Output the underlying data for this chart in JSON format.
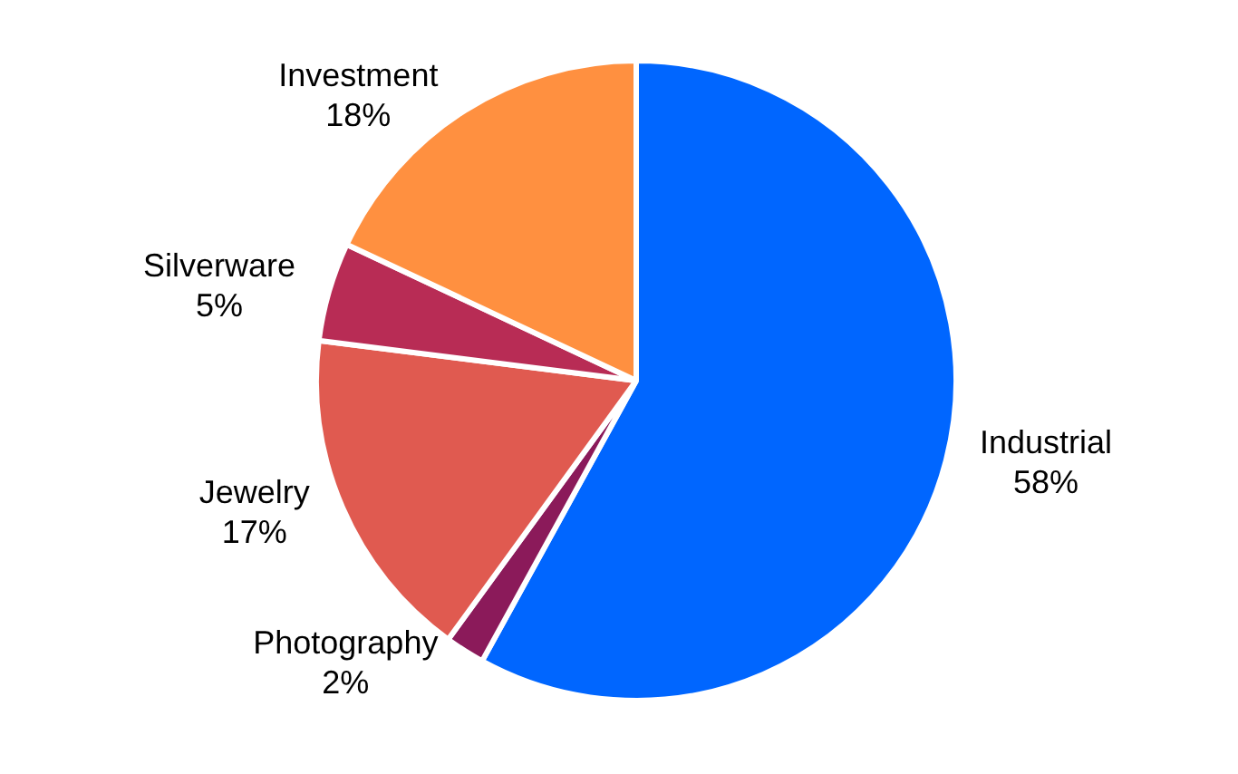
{
  "chart_data": {
    "type": "pie",
    "categories": [
      "Industrial",
      "Photography",
      "Jewelry",
      "Silverware",
      "Investment"
    ],
    "values": [
      58,
      2,
      17,
      5,
      18
    ],
    "value_labels": [
      "58%",
      "2%",
      "17%",
      "5%",
      "18%"
    ],
    "colors": [
      "#0066ff",
      "#8b1a5a",
      "#e05a50",
      "#b82c55",
      "#ff9040"
    ],
    "legend": false
  }
}
